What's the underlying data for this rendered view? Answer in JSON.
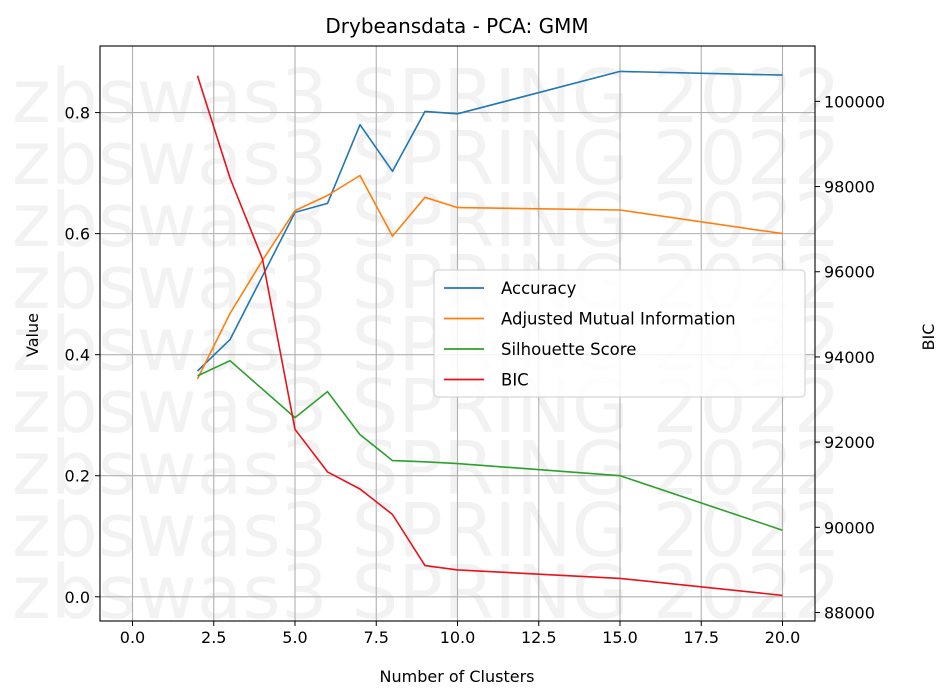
{
  "chart_data": {
    "type": "line",
    "title": "Drybeansdata - PCA: GMM",
    "xlabel": "Number of Clusters",
    "ylabel": "Value",
    "y2label": "BIC",
    "xlim": [
      -1,
      21
    ],
    "ylim": [
      -0.04,
      0.91
    ],
    "y2lim": [
      87800,
      101300
    ],
    "xticks": [
      0,
      2.5,
      5,
      7.5,
      10,
      12.5,
      15,
      17.5,
      20
    ],
    "xtick_labels": [
      "0.0",
      "2.5",
      "5.0",
      "7.5",
      "10.0",
      "12.5",
      "15.0",
      "17.5",
      "20.0"
    ],
    "yticks": [
      0,
      0.2,
      0.4,
      0.6,
      0.8
    ],
    "ytick_labels": [
      "0.0",
      "0.2",
      "0.4",
      "0.6",
      "0.8"
    ],
    "y2ticks": [
      88000,
      90000,
      92000,
      94000,
      96000,
      98000,
      100000
    ],
    "y2tick_labels": [
      "88000",
      "90000",
      "92000",
      "94000",
      "96000",
      "98000",
      "100000"
    ],
    "grid": true,
    "legend_position": "center-right",
    "watermark": "zbswas3 SPRING 2022",
    "x": [
      2,
      3,
      4,
      5,
      6,
      7,
      8,
      9,
      10,
      15,
      20
    ],
    "series": [
      {
        "name": "Accuracy",
        "axis": "left",
        "color": "#1f77b4",
        "values": [
          0.373,
          0.425,
          0.53,
          0.635,
          0.65,
          0.78,
          0.703,
          0.802,
          0.798,
          0.868,
          0.862
        ]
      },
      {
        "name": "Adjusted Mutual Information",
        "axis": "left",
        "color": "#ff7f0e",
        "values": [
          0.36,
          0.468,
          0.556,
          0.638,
          0.663,
          0.696,
          0.596,
          0.66,
          0.643,
          0.639,
          0.6
        ]
      },
      {
        "name": "Silhouette Score",
        "axis": "left",
        "color": "#2ca02c",
        "values": [
          0.365,
          0.39,
          0.343,
          0.296,
          0.339,
          0.268,
          0.225,
          0.223,
          0.22,
          0.2,
          0.11
        ]
      },
      {
        "name": "BIC",
        "axis": "right",
        "color": "#e8121a",
        "values": [
          100600,
          98200,
          96300,
          92300,
          91300,
          90900,
          90300,
          89100,
          89000,
          88800,
          88400
        ]
      }
    ]
  }
}
